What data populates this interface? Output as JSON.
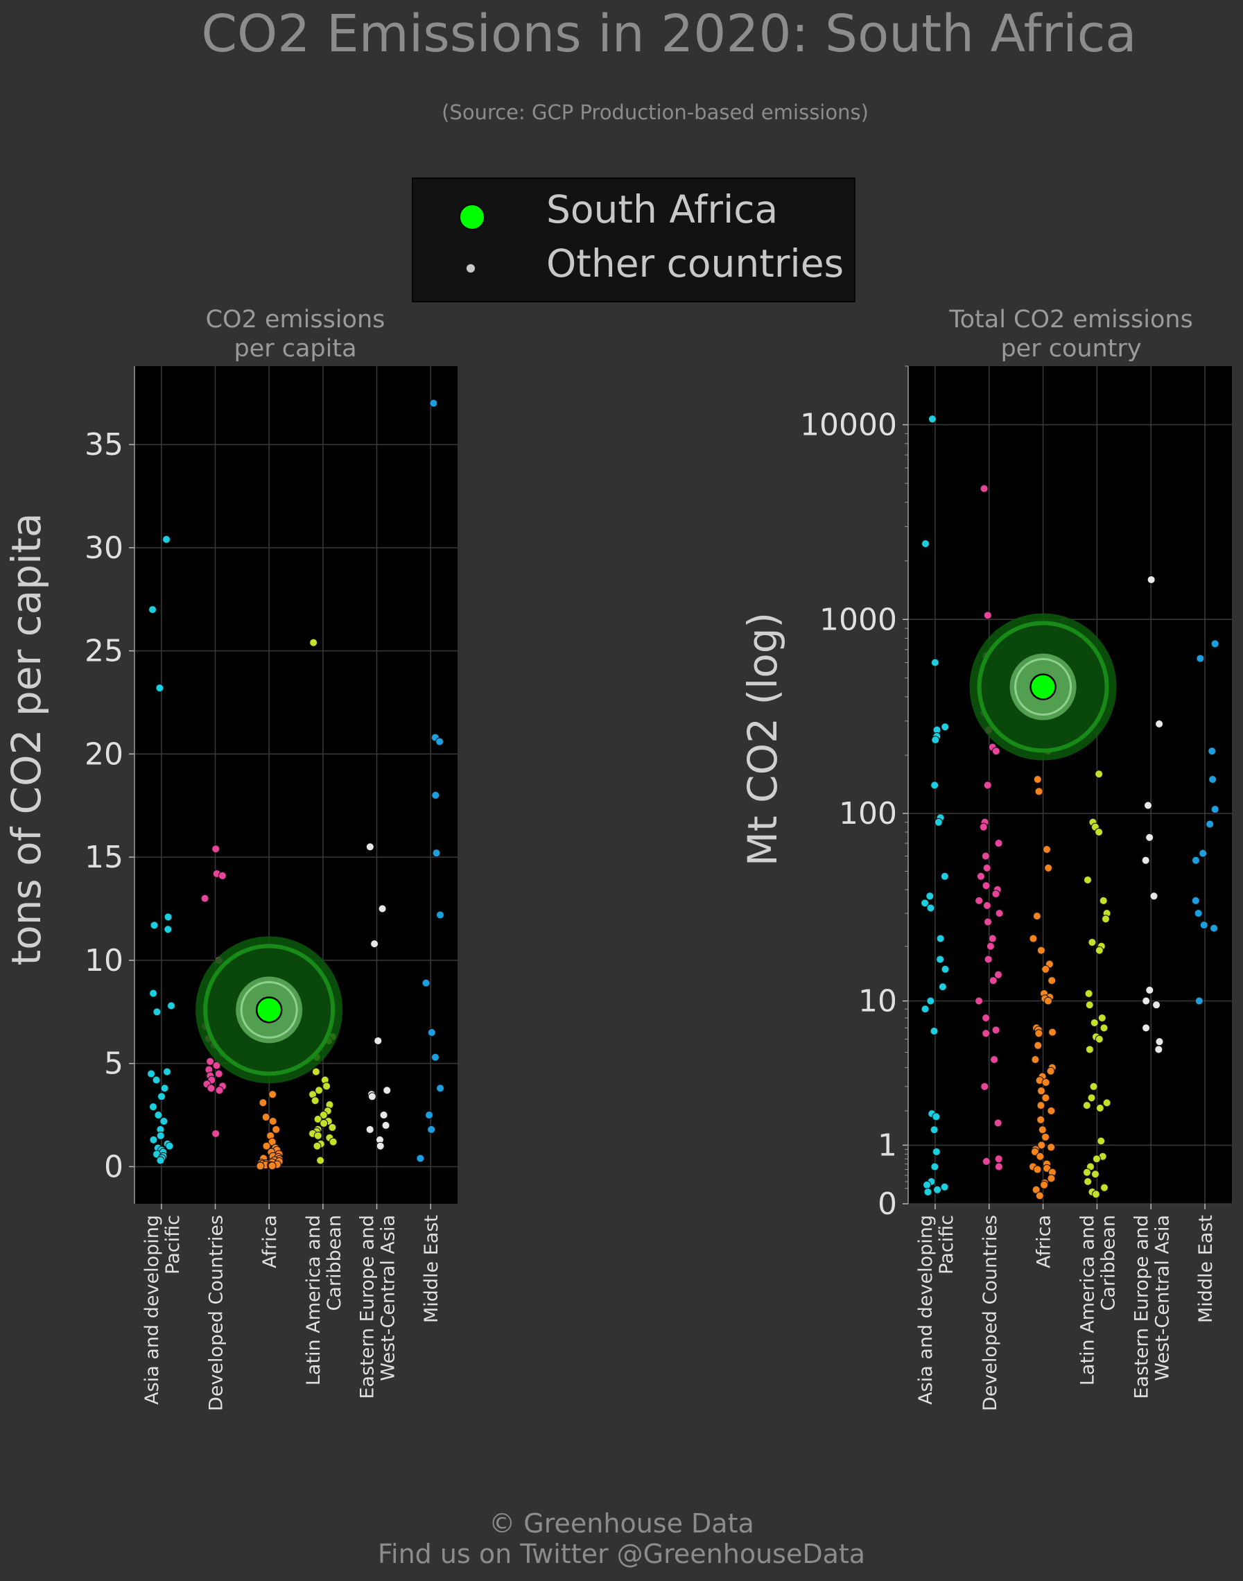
{
  "title": "CO2 Emissions in 2020: South Africa",
  "subtitle": "(Source: GCP Production-based emissions)",
  "legend": {
    "highlight_label": "South Africa",
    "others_label": "Other countries"
  },
  "footer": {
    "line1": "© Greenhouse Data",
    "line2": "Find us on Twitter @GreenhouseData"
  },
  "colors": {
    "background": "#323232",
    "plot_background": "#000000",
    "highlight": "#00ff00",
    "Asia and developing Pacific": "#1ccfe0",
    "Developed Countries": "#e8449a",
    "Africa": "#f5841f",
    "Latin America and Caribbean": "#c3e02a",
    "Eastern Europe and West-Central Asia": "#e8e8e8",
    "Middle East": "#1c9ee0"
  },
  "chart_data": [
    {
      "type": "scatter",
      "title": "CO2 emissions\nper capita",
      "ylabel": "tons of CO2 per capita",
      "scale": "linear",
      "ylim": [
        -1.8,
        38.8
      ],
      "yticks": [
        0,
        5,
        10,
        15,
        20,
        25,
        30,
        35
      ],
      "ytick_labels": [
        "0",
        "5",
        "10",
        "15",
        "20",
        "25",
        "30",
        "35"
      ],
      "grid": true,
      "categories": [
        "Asia and developing Pacific",
        "Developed Countries",
        "Africa",
        "Latin America and Caribbean",
        "Eastern Europe and West-Central Asia",
        "Middle East"
      ],
      "category_labels": [
        [
          "Asia and developing",
          "Pacific"
        ],
        [
          "Developed Countries"
        ],
        [
          "Africa"
        ],
        [
          "Latin America and",
          "Caribbean"
        ],
        [
          "Eastern Europe and",
          "West-Central Asia"
        ],
        [
          "Middle East"
        ]
      ],
      "highlight": {
        "name": "South Africa",
        "category": "Africa",
        "value": 7.6
      },
      "series": [
        {
          "name": "Asia and developing Pacific",
          "values": [
            30.4,
            27.0,
            23.2,
            12.1,
            11.7,
            11.5,
            8.4,
            7.8,
            7.5,
            4.6,
            4.5,
            4.2,
            3.8,
            3.4,
            2.9,
            2.5,
            2.2,
            1.8,
            1.5,
            1.3,
            1.1,
            1.0,
            0.9,
            0.8,
            0.7,
            0.6,
            0.5,
            0.4,
            0.3
          ]
        },
        {
          "name": "Developed Countries",
          "values": [
            15.4,
            14.2,
            14.1,
            13.0,
            10.0,
            9.0,
            8.7,
            8.4,
            8.2,
            8.0,
            7.9,
            7.7,
            7.5,
            7.2,
            6.8,
            6.5,
            6.2,
            5.9,
            5.5,
            5.1,
            4.9,
            4.7,
            4.5,
            4.4,
            4.2,
            4.0,
            3.9,
            3.8,
            3.7,
            1.6
          ]
        },
        {
          "name": "Africa",
          "values": [
            5.0,
            3.5,
            3.1,
            2.4,
            2.2,
            1.8,
            1.5,
            1.2,
            1.0,
            0.9,
            0.8,
            0.7,
            0.6,
            0.5,
            0.45,
            0.4,
            0.35,
            0.3,
            0.25,
            0.2,
            0.18,
            0.15,
            0.12,
            0.1,
            0.08,
            0.06,
            0.05,
            0.04,
            0.03
          ]
        },
        {
          "name": "Latin America and Caribbean",
          "values": [
            25.4,
            8.2,
            7.0,
            6.3,
            6.1,
            5.3,
            4.6,
            4.2,
            3.9,
            3.7,
            3.5,
            3.2,
            3.0,
            2.7,
            2.5,
            2.3,
            2.2,
            2.1,
            1.9,
            1.8,
            1.7,
            1.6,
            1.5,
            1.4,
            1.2,
            1.1,
            1.0,
            0.3
          ]
        },
        {
          "name": "Eastern Europe and West-Central Asia",
          "values": [
            15.5,
            12.5,
            10.8,
            6.1,
            3.7,
            3.5,
            3.4,
            2.5,
            2.0,
            1.8,
            1.3,
            1.0
          ]
        },
        {
          "name": "Middle East",
          "values": [
            37.0,
            20.8,
            20.6,
            18.0,
            15.2,
            12.2,
            8.9,
            6.5,
            5.3,
            3.8,
            2.5,
            1.8,
            0.4
          ]
        }
      ]
    },
    {
      "type": "scatter",
      "title": "Total CO2 emissions\nper country",
      "ylabel": "Mt CO2 (log)",
      "scale": "log1p",
      "ylim": [
        0,
        20000
      ],
      "yticks": [
        0,
        1,
        10,
        100,
        1000,
        10000
      ],
      "ytick_labels": [
        "0",
        "1",
        "10",
        "100",
        "1000",
        "10000"
      ],
      "grid": true,
      "categories": [
        "Asia and developing Pacific",
        "Developed Countries",
        "Africa",
        "Latin America and Caribbean",
        "Eastern Europe and West-Central Asia",
        "Middle East"
      ],
      "category_labels": [
        [
          "Asia and developing",
          "Pacific"
        ],
        [
          "Developed Countries"
        ],
        [
          "Africa"
        ],
        [
          "Latin America and",
          "Caribbean"
        ],
        [
          "Eastern Europe and",
          "West-Central Asia"
        ],
        [
          "Middle East"
        ]
      ],
      "highlight": {
        "name": "South Africa",
        "category": "Africa",
        "value": 450
      },
      "series": [
        {
          "name": "Asia and developing Pacific",
          "values": [
            10700,
            2450,
            600,
            280,
            270,
            250,
            240,
            140,
            95,
            90,
            47,
            37,
            34,
            32,
            22,
            17,
            15,
            12,
            10,
            9,
            6.7,
            1.9,
            1.8,
            1.4,
            0.85,
            0.55,
            0.3,
            0.25,
            0.22,
            0.18,
            0.15
          ]
        },
        {
          "name": "Developed Countries",
          "values": [
            4700,
            1050,
            650,
            550,
            330,
            300,
            270,
            220,
            210,
            140,
            90,
            85,
            70,
            60,
            52,
            47,
            42,
            40,
            38,
            35,
            33,
            30,
            27,
            22,
            20,
            17,
            14,
            13,
            10,
            8,
            6.8,
            6.5,
            4.5,
            3,
            1.6,
            0.7,
            0.65,
            0.55
          ]
        },
        {
          "name": "Africa",
          "values": [
            210,
            150,
            130,
            65,
            52,
            29,
            22,
            19,
            16,
            15,
            13,
            11,
            10.5,
            10.3,
            10,
            7,
            6.8,
            6.6,
            6.5,
            5.5,
            4.5,
            4,
            3.8,
            3.5,
            3.3,
            3.2,
            2.8,
            2.5,
            2.2,
            2.0,
            1.7,
            1.4,
            1.2,
            1.0,
            0.95,
            0.9,
            0.85,
            0.75,
            0.6,
            0.55,
            0.52,
            0.5,
            0.45,
            0.35,
            0.28,
            0.25,
            0.18,
            0.1
          ]
        },
        {
          "name": "Latin America and Caribbean",
          "values": [
            470,
            350,
            160,
            90,
            85,
            80,
            45,
            35,
            30,
            28,
            21,
            20,
            19,
            11,
            9.5,
            8,
            7.5,
            7,
            6.2,
            6,
            5.2,
            3,
            2.5,
            2.3,
            2.2,
            2.1,
            1.1,
            0.75,
            0.7,
            0.55,
            0.45,
            0.42,
            0.3,
            0.22,
            0.21,
            0.15,
            0.12
          ]
        },
        {
          "name": "Eastern Europe and West-Central Asia",
          "values": [
            1600,
            290,
            110,
            75,
            57,
            37,
            11.5,
            10,
            9.5,
            7,
            5.8,
            5.2
          ]
        },
        {
          "name": "Middle East",
          "values": [
            750,
            630,
            210,
            150,
            105,
            88,
            62,
            57,
            35,
            30,
            26,
            25,
            10
          ]
        }
      ]
    }
  ]
}
